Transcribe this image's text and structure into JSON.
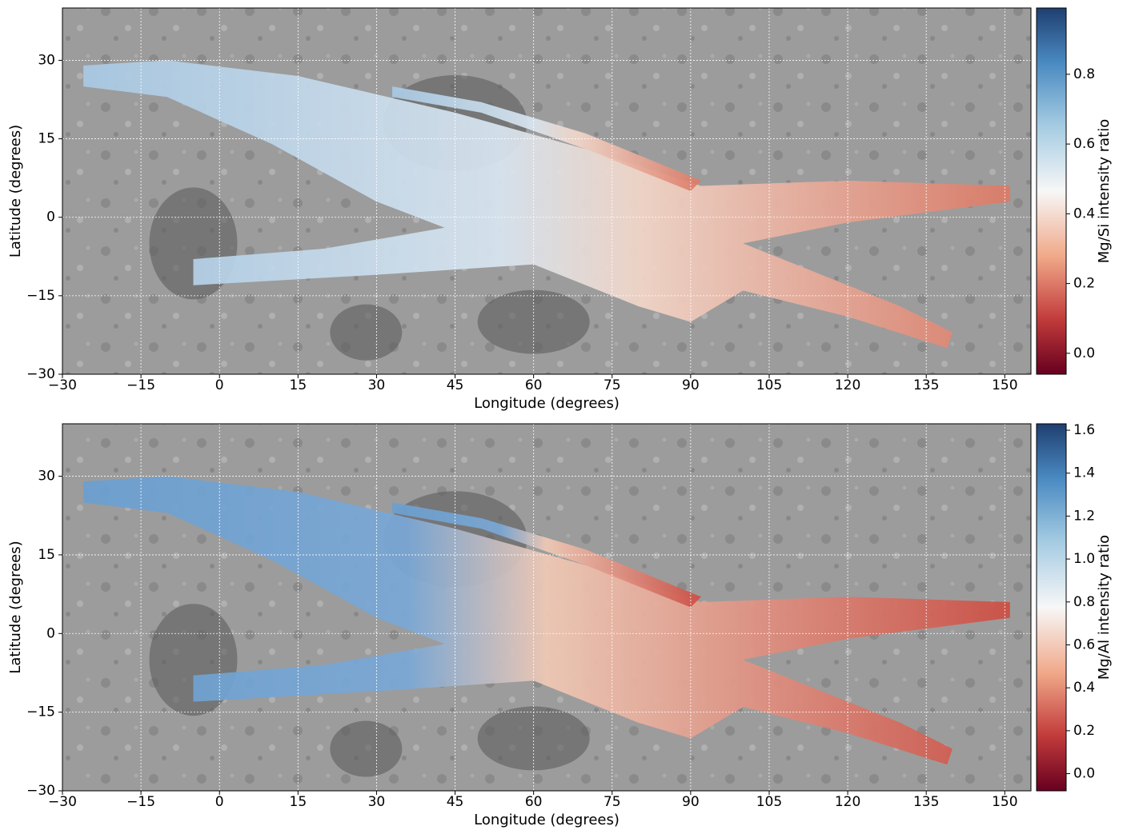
{
  "chart_data": [
    {
      "type": "map",
      "xlabel": "Longitude (degrees)",
      "ylabel": "Latitude (degrees)",
      "xlim": [
        -30,
        155
      ],
      "ylim": [
        -30,
        40
      ],
      "xticks": [
        {
          "value": -30,
          "label": "−30"
        },
        {
          "value": -15,
          "label": "−15"
        },
        0,
        15,
        30,
        45,
        60,
        75,
        90,
        105,
        120,
        135,
        150
      ],
      "yticks": [
        {
          "value": -30,
          "label": "−30"
        },
        {
          "value": -15,
          "label": "−15"
        },
        0,
        15,
        30
      ],
      "grid": true,
      "colorbar_label": "Mg/Si intensity ratio",
      "clim": [
        -0.06,
        0.99
      ],
      "cticks": [
        {
          "value": 0,
          "label": "0.0"
        },
        0.2,
        0.4,
        0.6,
        0.8
      ]
    },
    {
      "type": "map",
      "xlabel": "Longitude (degrees)",
      "ylabel": "Latitude (degrees)",
      "xlim": [
        -30,
        155
      ],
      "ylim": [
        -30,
        40
      ],
      "xticks": [
        {
          "value": -30,
          "label": "−30"
        },
        {
          "value": -15,
          "label": "−15"
        },
        0,
        15,
        30,
        45,
        60,
        75,
        90,
        105,
        120,
        135,
        150
      ],
      "yticks": [
        {
          "value": -30,
          "label": "−30"
        },
        {
          "value": -15,
          "label": "−15"
        },
        0,
        15,
        30
      ],
      "grid": true,
      "colorbar_label": "Mg/Al intensity ratio",
      "clim": [
        -0.08,
        1.63
      ],
      "cticks": [
        {
          "value": 0,
          "label": "0.0"
        },
        0.2,
        0.4,
        0.6,
        0.8,
        {
          "value": 1,
          "label": "1.0"
        },
        1.2,
        1.4,
        1.6
      ]
    }
  ]
}
